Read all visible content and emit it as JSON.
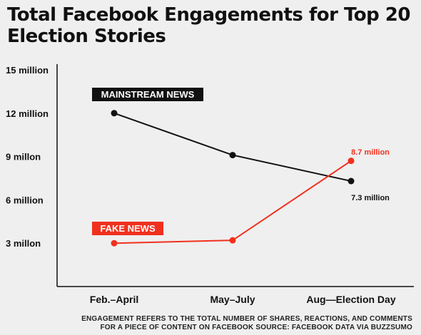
{
  "title": "Total Facebook Engagements for Top 20 Election Stories",
  "footnote_line1": "ENGAGEMENT REFERS TO THE TOTAL NUMBER OF SHARES, REACTIONS, AND COMMENTS",
  "footnote_line2": "FOR A PIECE OF CONTENT ON FACEBOOK SOURCE: FACEBOOK DATA VIA BUZZSUMO",
  "colors": {
    "mainstream": "#111111",
    "fake": "#f0311e",
    "background": "#efefef"
  },
  "chart_data": {
    "type": "line",
    "title": "Total Facebook Engagements for Top 20 Election Stories",
    "categories": [
      "Feb.–April",
      "May–July",
      "Aug—Election Day"
    ],
    "ylim": [
      0,
      15
    ],
    "y_ticks": [
      {
        "value": 3,
        "label": "3 millon"
      },
      {
        "value": 6,
        "label": "6 million"
      },
      {
        "value": 9,
        "label": "9 millon"
      },
      {
        "value": 12,
        "label": "12 million"
      },
      {
        "value": 15,
        "label": "15 million"
      }
    ],
    "y_unit": "million",
    "grid": false,
    "series": [
      {
        "name": "MAINSTREAM NEWS",
        "values": [
          12,
          9.1,
          7.3
        ],
        "color": "#111111",
        "end_label": "7.3 million"
      },
      {
        "name": "FAKE NEWS",
        "values": [
          3,
          3.2,
          8.7
        ],
        "color": "#f0311e",
        "end_label": "8.7 million"
      }
    ]
  }
}
